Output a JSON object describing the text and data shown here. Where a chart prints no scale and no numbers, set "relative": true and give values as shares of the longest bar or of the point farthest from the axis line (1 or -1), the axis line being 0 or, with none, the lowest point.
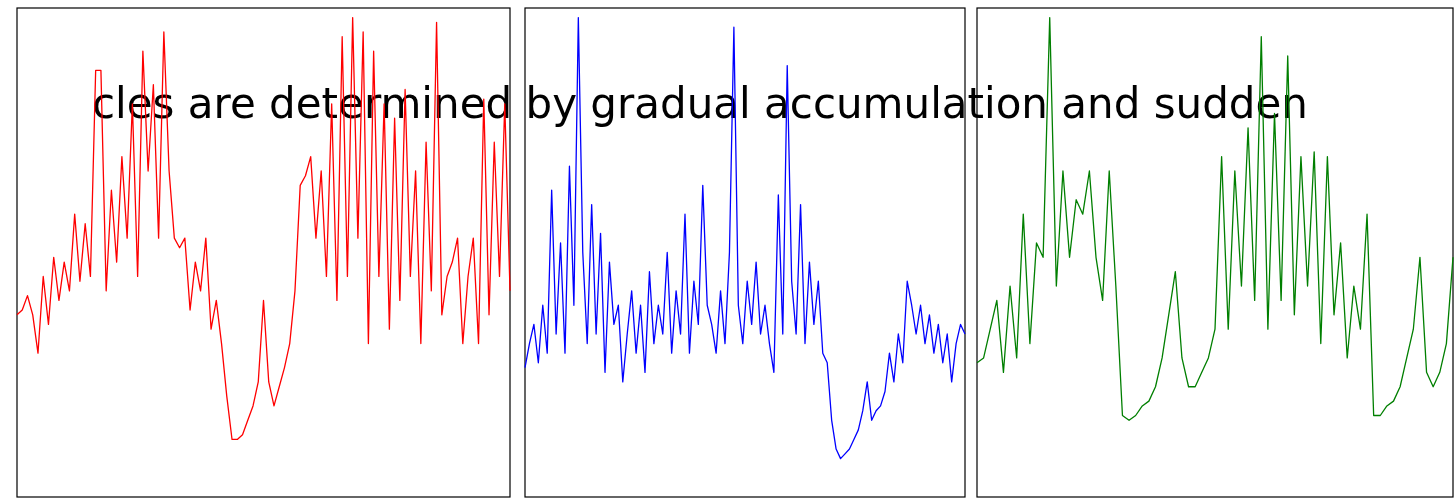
{
  "chart_data": [
    {
      "type": "line",
      "relative": true,
      "title": "cles are determined by gradual accumulation and sudden",
      "categories": [
        null,
        null,
        null,
        null,
        null,
        null,
        null,
        null,
        null,
        null,
        null,
        null,
        null,
        null,
        null,
        null,
        null,
        null,
        null,
        null,
        null,
        null,
        null,
        null,
        null,
        null,
        null,
        null,
        null,
        null,
        null,
        null,
        null,
        null,
        null,
        null,
        null,
        null,
        null,
        null,
        null,
        null,
        null,
        null,
        null,
        null,
        null,
        null,
        null,
        null,
        null,
        null,
        null,
        null,
        null,
        null,
        null,
        null,
        null,
        null,
        null,
        null,
        null,
        null,
        null,
        null,
        null,
        null,
        null,
        null,
        null,
        null,
        null,
        null,
        null,
        null,
        null,
        null,
        null,
        null,
        null,
        null,
        null,
        null,
        null,
        null,
        null,
        null,
        null,
        null,
        null,
        null,
        null,
        null,
        null
      ],
      "series": [
        {
          "color": "#ff0000",
          "values": [
            0.38,
            0.39,
            0.42,
            0.38,
            0.3,
            0.46,
            0.36,
            0.5,
            0.41,
            0.49,
            0.43,
            0.59,
            0.45,
            0.57,
            0.46,
            0.89,
            0.89,
            0.43,
            0.64,
            0.49,
            0.71,
            0.54,
            0.82,
            0.46,
            0.93,
            0.68,
            0.86,
            0.54,
            0.97,
            0.68,
            0.54,
            0.52,
            0.54,
            0.39,
            0.49,
            0.43,
            0.54,
            0.35,
            0.41,
            0.32,
            0.21,
            0.12,
            0.12,
            0.13,
            0.16,
            0.19,
            0.24,
            0.41,
            0.24,
            0.19,
            0.23,
            0.27,
            0.32,
            0.43,
            0.65,
            0.67,
            0.71,
            0.54,
            0.68,
            0.46,
            0.82,
            0.41,
            0.96,
            0.46,
            1,
            0.54,
            0.97,
            0.32,
            0.93,
            0.46,
            0.82,
            0.35,
            0.79,
            0.41,
            0.85,
            0.46,
            0.68,
            0.32,
            0.74,
            0.43,
            0.99,
            0.38,
            0.46,
            0.49,
            0.54,
            0.32,
            0.46,
            0.54,
            0.32,
            0.83,
            0.38,
            0.74,
            0.46,
            0.82,
            0.43
          ]
        }
      ]
    },
    {
      "type": "line",
      "relative": true,
      "categories": [
        null,
        null,
        null,
        null,
        null,
        null,
        null,
        null,
        null,
        null,
        null,
        null,
        null,
        null,
        null,
        null,
        null,
        null,
        null,
        null,
        null,
        null,
        null,
        null,
        null,
        null,
        null,
        null,
        null,
        null,
        null,
        null,
        null,
        null,
        null,
        null,
        null,
        null,
        null,
        null,
        null,
        null,
        null,
        null,
        null,
        null,
        null,
        null,
        null,
        null,
        null,
        null,
        null,
        null,
        null,
        null,
        null,
        null,
        null,
        null,
        null,
        null,
        null,
        null,
        null,
        null,
        null,
        null,
        null,
        null,
        null,
        null,
        null,
        null,
        null,
        null,
        null,
        null,
        null,
        null,
        null,
        null,
        null,
        null,
        null,
        null,
        null,
        null,
        null,
        null,
        null,
        null,
        null,
        null,
        null,
        null,
        null,
        null,
        null,
        null
      ],
      "series": [
        {
          "color": "#0000ff",
          "values": [
            0.27,
            0.32,
            0.36,
            0.28,
            0.4,
            0.3,
            0.64,
            0.34,
            0.53,
            0.3,
            0.69,
            0.4,
            1,
            0.51,
            0.32,
            0.61,
            0.34,
            0.55,
            0.26,
            0.49,
            0.36,
            0.4,
            0.24,
            0.34,
            0.43,
            0.3,
            0.4,
            0.26,
            0.47,
            0.32,
            0.4,
            0.34,
            0.51,
            0.3,
            0.43,
            0.34,
            0.59,
            0.3,
            0.45,
            0.36,
            0.65,
            0.4,
            0.36,
            0.3,
            0.43,
            0.32,
            0.51,
            0.98,
            0.4,
            0.32,
            0.45,
            0.36,
            0.49,
            0.34,
            0.4,
            0.32,
            0.26,
            0.63,
            0.34,
            0.9,
            0.45,
            0.34,
            0.61,
            0.32,
            0.49,
            0.36,
            0.45,
            0.3,
            0.28,
            0.16,
            0.1,
            0.08,
            0.09,
            0.1,
            0.12,
            0.14,
            0.18,
            0.24,
            0.16,
            0.18,
            0.19,
            0.22,
            0.3,
            0.24,
            0.34,
            0.28,
            0.45,
            0.4,
            0.34,
            0.4,
            0.32,
            0.38,
            0.3,
            0.36,
            0.28,
            0.34,
            0.24,
            0.32,
            0.36,
            0.34
          ]
        }
      ]
    },
    {
      "type": "line",
      "relative": true,
      "categories": [
        null,
        null,
        null,
        null,
        null,
        null,
        null,
        null,
        null,
        null,
        null,
        null,
        null,
        null,
        null,
        null,
        null,
        null,
        null,
        null,
        null,
        null,
        null,
        null,
        null,
        null,
        null,
        null,
        null,
        null,
        null,
        null,
        null,
        null,
        null,
        null,
        null,
        null,
        null,
        null,
        null,
        null,
        null,
        null,
        null,
        null,
        null,
        null,
        null,
        null,
        null,
        null,
        null,
        null,
        null,
        null,
        null,
        null,
        null,
        null,
        null,
        null,
        null,
        null,
        null,
        null,
        null,
        null,
        null,
        null,
        null,
        null,
        null
      ],
      "series": [
        {
          "color": "#007f00",
          "values": [
            0.28,
            0.29,
            0.35,
            0.41,
            0.26,
            0.44,
            0.29,
            0.59,
            0.32,
            0.53,
            0.5,
            1,
            0.44,
            0.68,
            0.5,
            0.62,
            0.59,
            0.68,
            0.5,
            0.41,
            0.68,
            0.44,
            0.17,
            0.16,
            0.17,
            0.19,
            0.2,
            0.23,
            0.29,
            0.38,
            0.47,
            0.29,
            0.23,
            0.23,
            0.26,
            0.29,
            0.35,
            0.71,
            0.35,
            0.68,
            0.44,
            0.77,
            0.41,
            0.96,
            0.35,
            0.8,
            0.41,
            0.92,
            0.38,
            0.71,
            0.44,
            0.72,
            0.32,
            0.71,
            0.38,
            0.53,
            0.29,
            0.44,
            0.35,
            0.59,
            0.17,
            0.17,
            0.19,
            0.2,
            0.23,
            0.29,
            0.35,
            0.5,
            0.26,
            0.23,
            0.26,
            0.32,
            0.5
          ]
        }
      ]
    }
  ]
}
